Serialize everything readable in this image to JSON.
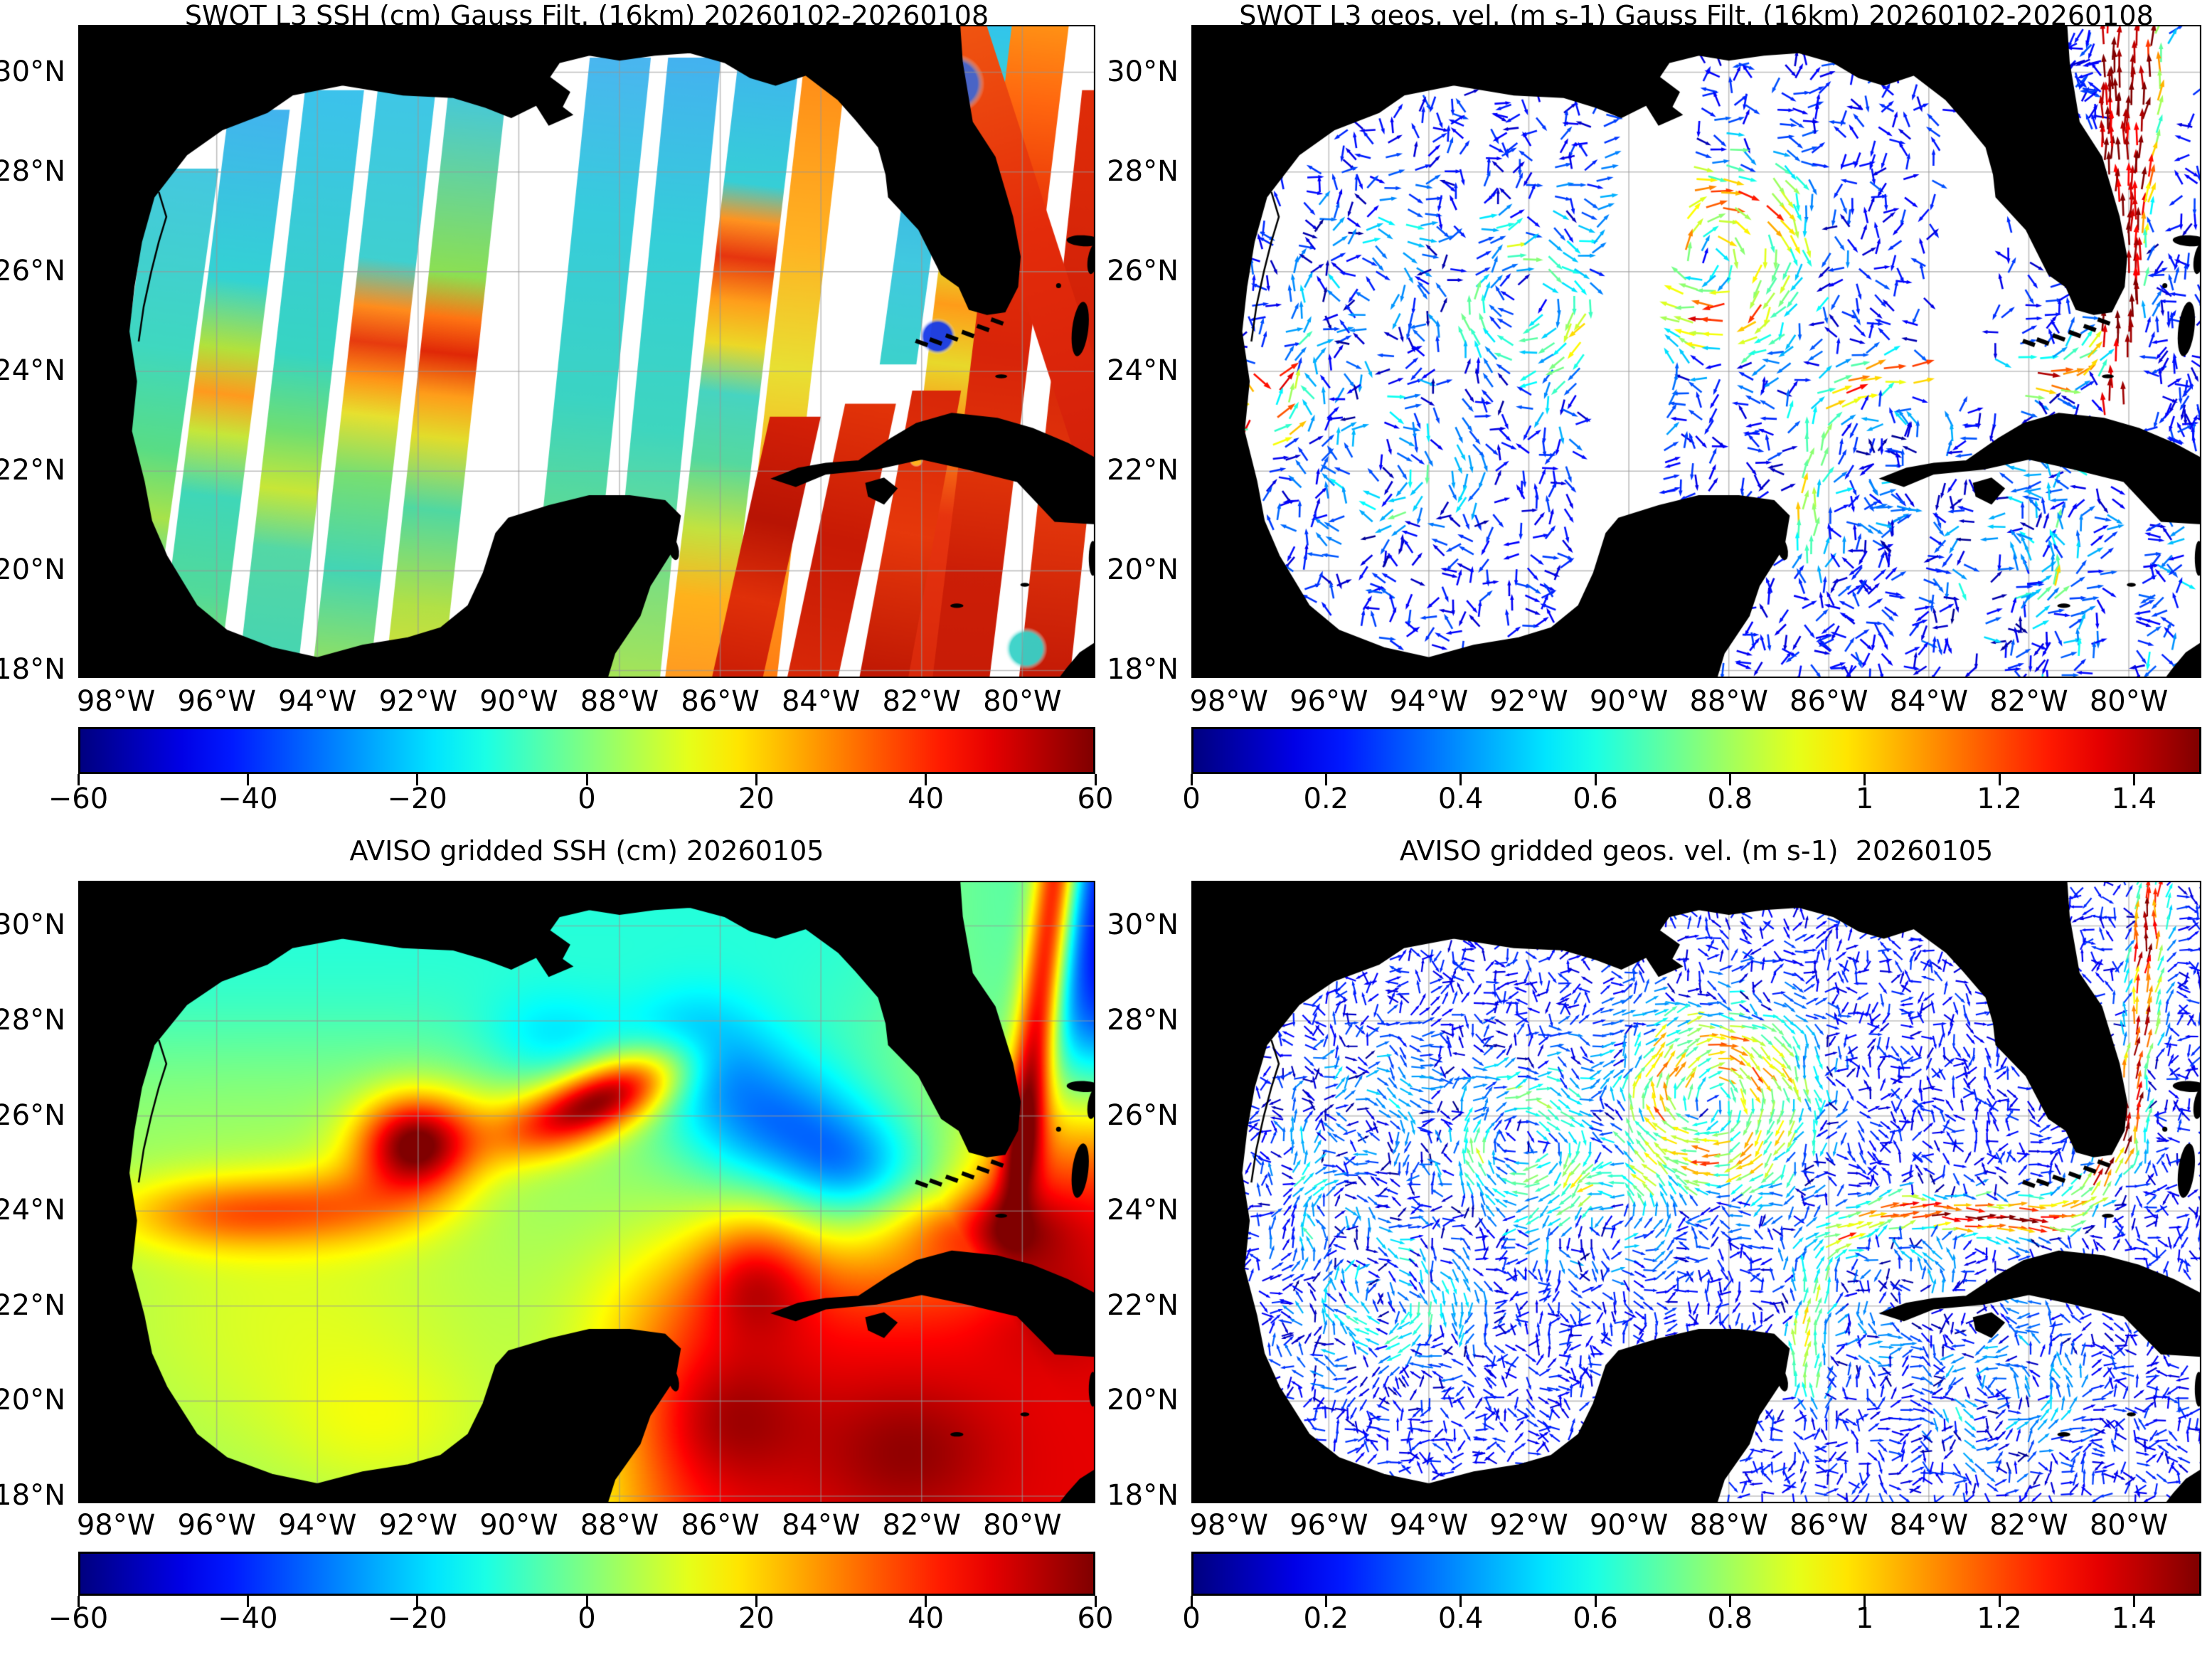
{
  "figure": {
    "kind": "2x2 map figure, Gulf of Mexico sea-surface height and geostrophic velocity",
    "background": "#ffffff",
    "land_color": "#000000",
    "no_data_color": "#ffffff"
  },
  "chart_data": [
    {
      "panel": "top-left",
      "type": "heatmap",
      "title": "SWOT L3 SSH (cm) Gauss Filt. (16km) 20260102-20260108",
      "variable": "SSH",
      "units": "cm",
      "x_tick_labels": [
        "98°W",
        "96°W",
        "94°W",
        "92°W",
        "90°W",
        "88°W",
        "86°W",
        "84°W",
        "82°W",
        "80°W"
      ],
      "y_tick_labels": [
        "30°N",
        "28°N",
        "26°N",
        "24°N",
        "22°N",
        "20°N",
        "18°N"
      ],
      "x_tick_values": [
        -98,
        -96,
        -94,
        -92,
        -90,
        -88,
        -86,
        -84,
        -82,
        -80
      ],
      "y_tick_values": [
        30,
        28,
        26,
        24,
        22,
        20,
        18
      ],
      "grid": true,
      "colormap": "jet",
      "colorbar": {
        "orientation": "horizontal",
        "vmin": -60,
        "vmax": 60,
        "tick_values": [
          -60,
          -40,
          -20,
          0,
          20,
          40,
          60
        ],
        "tick_labels": [
          "−60",
          "−40",
          "−20",
          "0",
          "20",
          "40",
          "60"
        ]
      }
    },
    {
      "panel": "top-right",
      "type": "quiver",
      "title": "SWOT L3 geos. vel. (m s-1) Gauss Filt. (16km) 20260102-20260108",
      "variable": "geostrophic velocity",
      "units": "m s-1",
      "x_tick_labels": [
        "98°W",
        "96°W",
        "94°W",
        "92°W",
        "90°W",
        "88°W",
        "86°W",
        "84°W",
        "82°W",
        "80°W"
      ],
      "y_tick_labels": [
        "30°N",
        "28°N",
        "26°N",
        "24°N",
        "22°N",
        "20°N",
        "18°N"
      ],
      "x_tick_values": [
        -98,
        -96,
        -94,
        -92,
        -90,
        -88,
        -86,
        -84,
        -82,
        -80
      ],
      "y_tick_values": [
        30,
        28,
        26,
        24,
        22,
        20,
        18
      ],
      "grid": true,
      "colormap": "jet",
      "colorbar": {
        "orientation": "horizontal",
        "vmin": 0,
        "vmax": 1.5,
        "tick_values": [
          0,
          0.2,
          0.4,
          0.6,
          0.8,
          1,
          1.2,
          1.4
        ],
        "tick_labels": [
          "0",
          "0.2",
          "0.4",
          "0.6",
          "0.8",
          "1",
          "1.2",
          "1.4"
        ]
      }
    },
    {
      "panel": "bottom-left",
      "type": "heatmap",
      "title": "AVISO gridded SSH (cm) 20260105",
      "variable": "SSH",
      "units": "cm",
      "x_tick_labels": [
        "98°W",
        "96°W",
        "94°W",
        "92°W",
        "90°W",
        "88°W",
        "86°W",
        "84°W",
        "82°W",
        "80°W"
      ],
      "y_tick_labels": [
        "30°N",
        "28°N",
        "26°N",
        "24°N",
        "22°N",
        "20°N",
        "18°N"
      ],
      "x_tick_values": [
        -98,
        -96,
        -94,
        -92,
        -90,
        -88,
        -86,
        -84,
        -82,
        -80
      ],
      "y_tick_values": [
        30,
        28,
        26,
        24,
        22,
        20,
        18
      ],
      "grid": true,
      "colormap": "jet",
      "colorbar": {
        "orientation": "horizontal",
        "vmin": -60,
        "vmax": 60,
        "tick_values": [
          -60,
          -40,
          -20,
          0,
          20,
          40,
          60
        ],
        "tick_labels": [
          "−60",
          "−40",
          "−20",
          "0",
          "20",
          "40",
          "60"
        ]
      }
    },
    {
      "panel": "bottom-right",
      "type": "quiver",
      "title": "AVISO gridded geos. vel. (m s-1)  20260105",
      "variable": "geostrophic velocity",
      "units": "m s-1",
      "x_tick_labels": [
        "98°W",
        "96°W",
        "94°W",
        "92°W",
        "90°W",
        "88°W",
        "86°W",
        "84°W",
        "82°W",
        "80°W"
      ],
      "y_tick_labels": [
        "30°N",
        "28°N",
        "26°N",
        "24°N",
        "22°N",
        "20°N",
        "18°N"
      ],
      "x_tick_values": [
        -98,
        -96,
        -94,
        -92,
        -90,
        -88,
        -86,
        -84,
        -82,
        -80
      ],
      "y_tick_values": [
        30,
        28,
        26,
        24,
        22,
        20,
        18
      ],
      "grid": true,
      "colormap": "jet",
      "colorbar": {
        "orientation": "horizontal",
        "vmin": 0,
        "vmax": 1.5,
        "tick_values": [
          0,
          0.2,
          0.4,
          0.6,
          0.8,
          1,
          1.2,
          1.4
        ],
        "tick_labels": [
          "0",
          "0.2",
          "0.4",
          "0.6",
          "0.8",
          "1",
          "1.2",
          "1.4"
        ]
      }
    }
  ]
}
